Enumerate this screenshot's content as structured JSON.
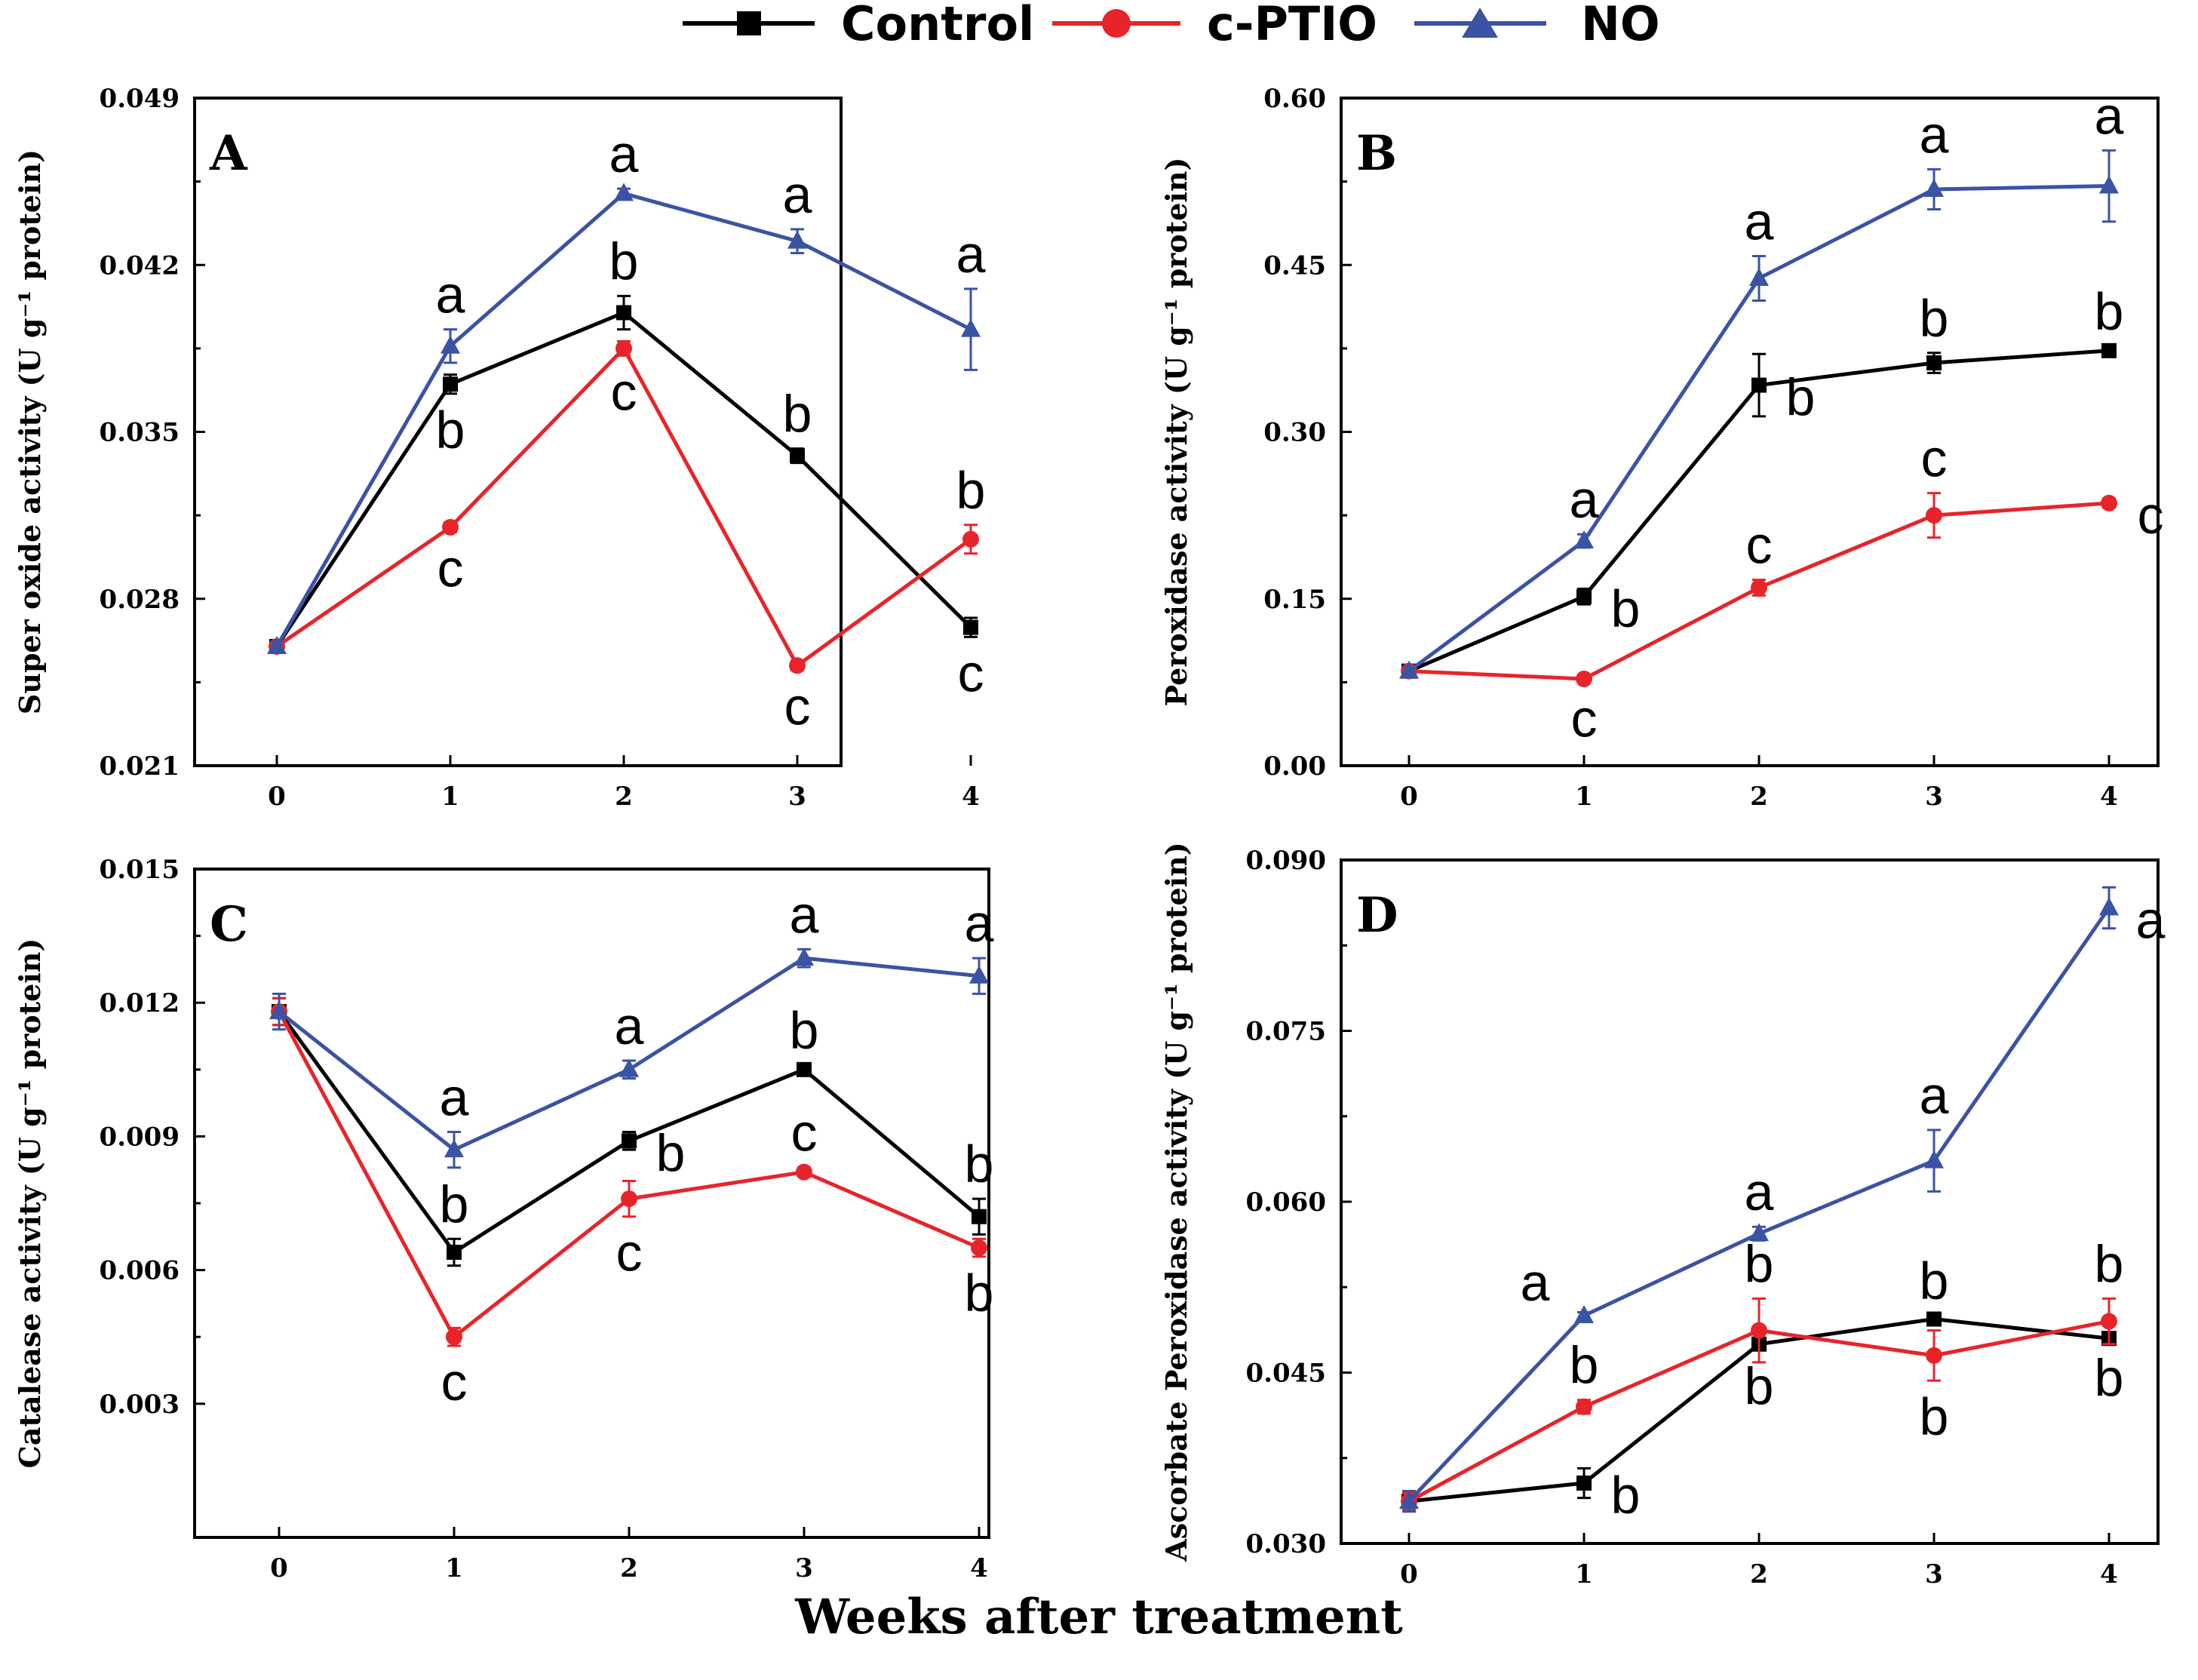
{
  "colors": {
    "Control": "#000000",
    "c-PTIO": "#e8242a",
    "NO": "#3a53a4"
  },
  "legend": [
    {
      "name": "Control",
      "marker": "square"
    },
    {
      "name": "c-PTIO",
      "marker": "circle"
    },
    {
      "name": "NO",
      "marker": "triangle"
    }
  ],
  "xlabel": "Weeks after treatment",
  "chart_data": [
    {
      "type": "line",
      "panel": "A",
      "x": [
        0,
        1,
        2,
        3,
        4
      ],
      "xticks": [
        "0",
        "1",
        "2",
        "3",
        "4"
      ],
      "ylabel": "Super oxide activity (U g⁻¹ protein)",
      "ylim": [
        0.021,
        0.049
      ],
      "yticks": [
        "0.021",
        "0.028",
        "0.035",
        "0.042",
        "0.049"
      ],
      "series": [
        {
          "name": "Control",
          "values": [
            0.026,
            0.037,
            0.04,
            0.034,
            0.0268
          ],
          "errors": [
            0.0002,
            0.0004,
            0.0007,
            0.0003,
            0.0004
          ],
          "labels": [
            "",
            "b",
            "b",
            "b",
            "c"
          ]
        },
        {
          "name": "c-PTIO",
          "values": [
            0.026,
            0.031,
            0.0385,
            0.0252,
            0.0305
          ],
          "errors": [
            0.0002,
            0.0002,
            0.0003,
            0.0002,
            0.0006
          ],
          "labels": [
            "",
            "c",
            "c",
            "c",
            "b"
          ]
        },
        {
          "name": "NO",
          "values": [
            0.026,
            0.0386,
            0.045,
            0.043,
            0.0393
          ],
          "errors": [
            0.0002,
            0.0007,
            0.0002,
            0.0005,
            0.0017
          ],
          "labels": [
            "",
            "a",
            "a",
            "a",
            "a"
          ]
        }
      ]
    },
    {
      "type": "line",
      "panel": "B",
      "x": [
        0,
        1,
        2,
        3,
        4
      ],
      "xticks": [
        "0",
        "1",
        "2",
        "3",
        "4"
      ],
      "ylabel": "Peroxidase activity (U g⁻¹ protein)",
      "ylim": [
        0.0,
        0.6
      ],
      "yticks": [
        "0.00",
        "0.15",
        "0.30",
        "0.45",
        "0.60"
      ],
      "series": [
        {
          "name": "Control",
          "values": [
            0.085,
            0.152,
            0.342,
            0.362,
            0.373
          ],
          "errors": [
            0.004,
            0.007,
            0.028,
            0.009,
            0.004
          ],
          "labels": [
            "",
            "b",
            "b",
            "b",
            "b"
          ]
        },
        {
          "name": "c-PTIO",
          "values": [
            0.085,
            0.078,
            0.16,
            0.225,
            0.236
          ],
          "errors": [
            0.004,
            0.003,
            0.007,
            0.02,
            0.004
          ],
          "labels": [
            "",
            "c",
            "c",
            "c",
            "c"
          ]
        },
        {
          "name": "NO",
          "values": [
            0.085,
            0.202,
            0.438,
            0.518,
            0.521
          ],
          "errors": [
            0.004,
            0.006,
            0.02,
            0.018,
            0.032
          ],
          "labels": [
            "",
            "a",
            "a",
            "a",
            "a"
          ]
        }
      ]
    },
    {
      "type": "line",
      "panel": "C",
      "x": [
        0,
        1,
        2,
        3,
        4
      ],
      "xticks": [
        "0",
        "1",
        "2",
        "3",
        "4"
      ],
      "ylabel": "Catalease  activity (U g⁻¹ protein)",
      "ylim": [
        0.0,
        0.015
      ],
      "yticks": [
        "0.003",
        "0.006",
        "0.009",
        "0.012",
        "0.015"
      ],
      "series": [
        {
          "name": "Control",
          "values": [
            0.0118,
            0.0064,
            0.0089,
            0.0105,
            0.0072
          ],
          "errors": [
            0.0003,
            0.0003,
            0.0002,
            0.0001,
            0.0004
          ],
          "labels": [
            "",
            "b",
            "b",
            "b",
            "b"
          ]
        },
        {
          "name": "c-PTIO",
          "values": [
            0.0118,
            0.0045,
            0.0076,
            0.0082,
            0.0065
          ],
          "errors": [
            0.0003,
            0.0002,
            0.0004,
            0.0001,
            0.0002
          ],
          "labels": [
            "",
            "c",
            "c",
            "c",
            "b"
          ]
        },
        {
          "name": "NO",
          "values": [
            0.0118,
            0.0087,
            0.0105,
            0.013,
            0.0126
          ],
          "errors": [
            0.0004,
            0.0004,
            0.0002,
            0.0002,
            0.0004
          ],
          "labels": [
            "",
            "a",
            "a",
            "a",
            "a"
          ]
        }
      ]
    },
    {
      "type": "line",
      "panel": "D",
      "x": [
        0,
        1,
        2,
        3,
        4
      ],
      "xticks": [
        "0",
        "1",
        "2",
        "3",
        "4"
      ],
      "ylabel": "Ascorbate Peroxidase activity (U g⁻¹ protein)",
      "ylim": [
        0.03,
        0.09
      ],
      "yticks": [
        "0.030",
        "0.045",
        "0.060",
        "0.075",
        "0.090"
      ],
      "series": [
        {
          "name": "Control",
          "values": [
            0.0337,
            0.0353,
            0.0475,
            0.0497,
            0.048
          ],
          "errors": [
            0.0007,
            0.0013,
            0.0005,
            0.0003,
            0.0003
          ],
          "labels": [
            "",
            "b",
            "b",
            "b",
            "b"
          ]
        },
        {
          "name": "c-PTIO",
          "values": [
            0.0337,
            0.042,
            0.0487,
            0.0465,
            0.0495
          ],
          "errors": [
            0.0007,
            0.0006,
            0.0028,
            0.0022,
            0.002
          ],
          "labels": [
            "",
            "b",
            "b",
            "b",
            "b"
          ]
        },
        {
          "name": "NO",
          "values": [
            0.0337,
            0.05,
            0.0572,
            0.0636,
            0.0858
          ],
          "errors": [
            0.0009,
            0.0003,
            0.0006,
            0.0027,
            0.0018
          ],
          "labels": [
            "",
            "a",
            "a",
            "a",
            "a"
          ]
        }
      ]
    }
  ]
}
